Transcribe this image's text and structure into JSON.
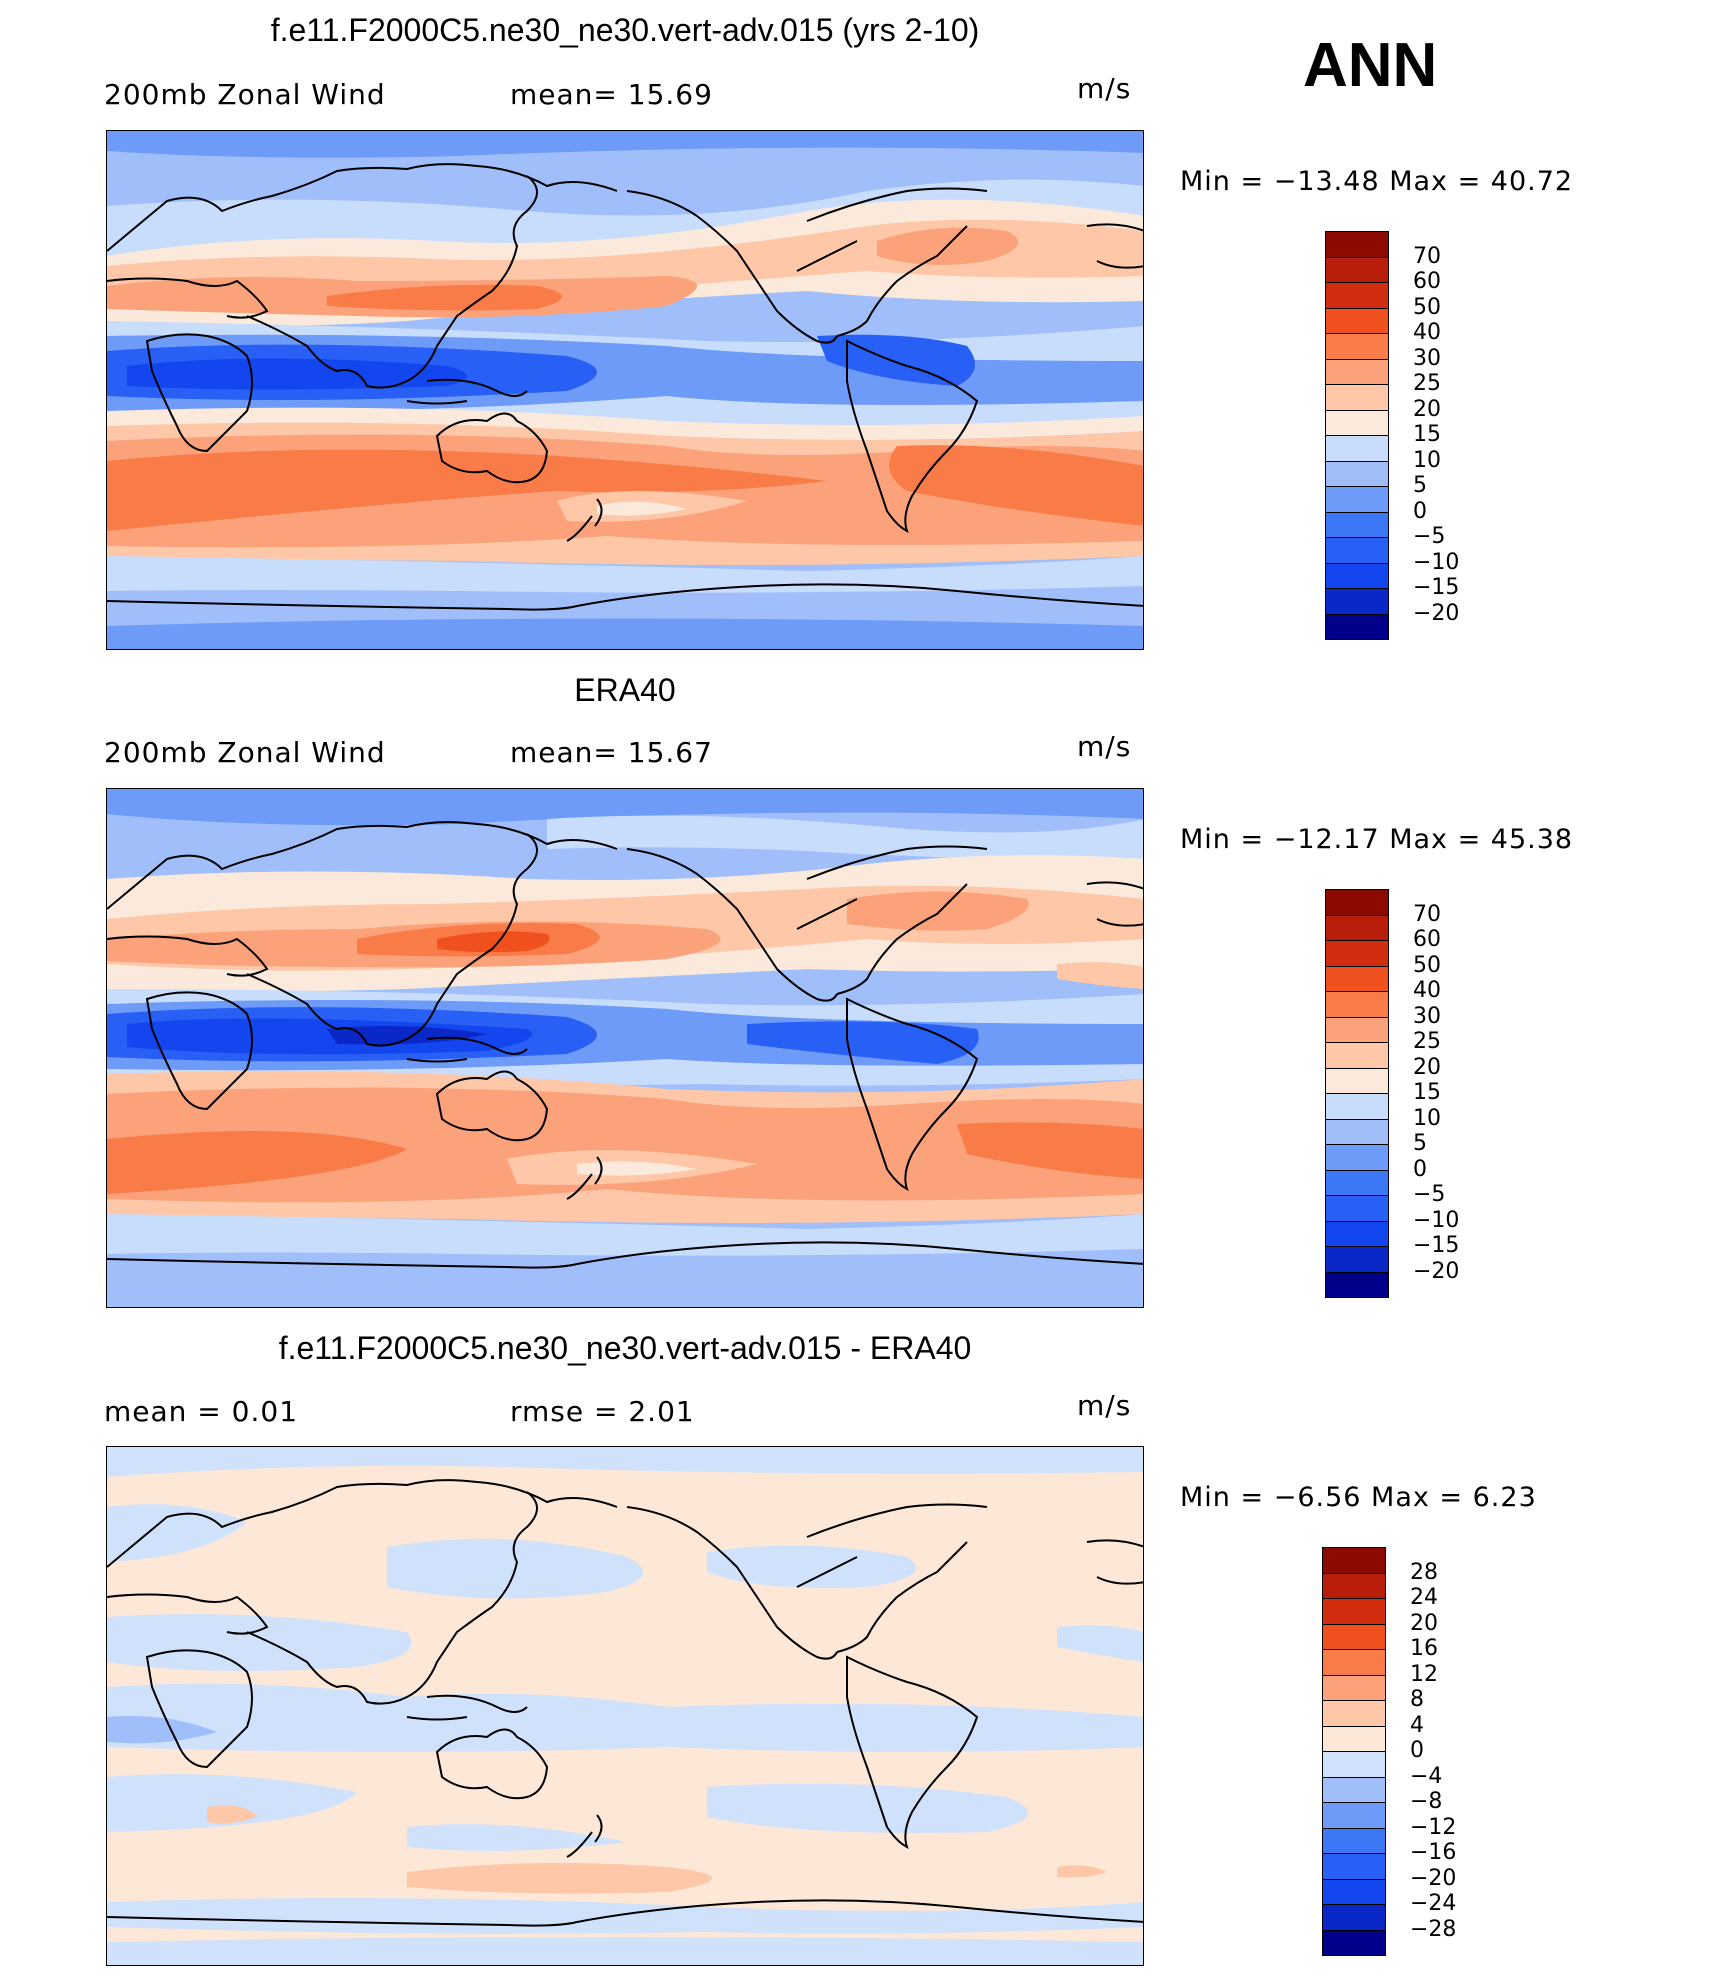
{
  "season": "ANN",
  "colors": {
    "main_scale": [
      "#00008a",
      "#0a28c8",
      "#1446f0",
      "#285ff5",
      "#3c78f5",
      "#6e9af8",
      "#a0bef9",
      "#c8dcfb",
      "#fbeadb",
      "#fdc7a8",
      "#fba27b",
      "#f97c48",
      "#f0501e",
      "#d22d0f",
      "#b91e0a",
      "#8b0a00"
    ],
    "diff_scale": [
      "#00008a",
      "#0a28c8",
      "#1446f0",
      "#285ff5",
      "#3c78f5",
      "#6e9af8",
      "#a0bef9",
      "#d0e2fb",
      "#fde8d8",
      "#fdc7a8",
      "#fba27b",
      "#f97c48",
      "#f0501e",
      "#d22d0f",
      "#b91e0a",
      "#8b0a00"
    ],
    "coast": "#000000"
  },
  "panels": [
    {
      "title": "f.e11.F2000C5.ne30_ne30.vert-adv.015 (yrs 2-10)",
      "left_label": "200mb  Zonal  Wind",
      "mid_label": "mean=   15.69",
      "units": "m/s",
      "minmax": "Min  =  −13.48  Max  =    40.72",
      "levels": [
        "70",
        "60",
        "50",
        "40",
        "30",
        "25",
        "20",
        "15",
        "10",
        "5",
        "0",
        "−5",
        "−10",
        "−15",
        "−20"
      ]
    },
    {
      "title": "ERA40",
      "left_label": "200mb  Zonal  Wind",
      "mid_label": "mean=   15.67",
      "units": "m/s",
      "minmax": "Min  =  −12.17  Max  =    45.38",
      "levels": [
        "70",
        "60",
        "50",
        "40",
        "30",
        "25",
        "20",
        "15",
        "10",
        "5",
        "0",
        "−5",
        "−10",
        "−15",
        "−20"
      ]
    },
    {
      "title": "f.e11.F2000C5.ne30_ne30.vert-adv.015 - ERA40",
      "left_label": "mean  =     0.01",
      "mid_label": "rmse  =     2.01",
      "units": "m/s",
      "minmax": "Min  =    −6.56  Max  =     6.23",
      "levels": [
        "28",
        "24",
        "20",
        "16",
        "12",
        "8",
        "4",
        "0",
        "−4",
        "−8",
        "−12",
        "−16",
        "−20",
        "−24",
        "−28"
      ]
    }
  ]
}
